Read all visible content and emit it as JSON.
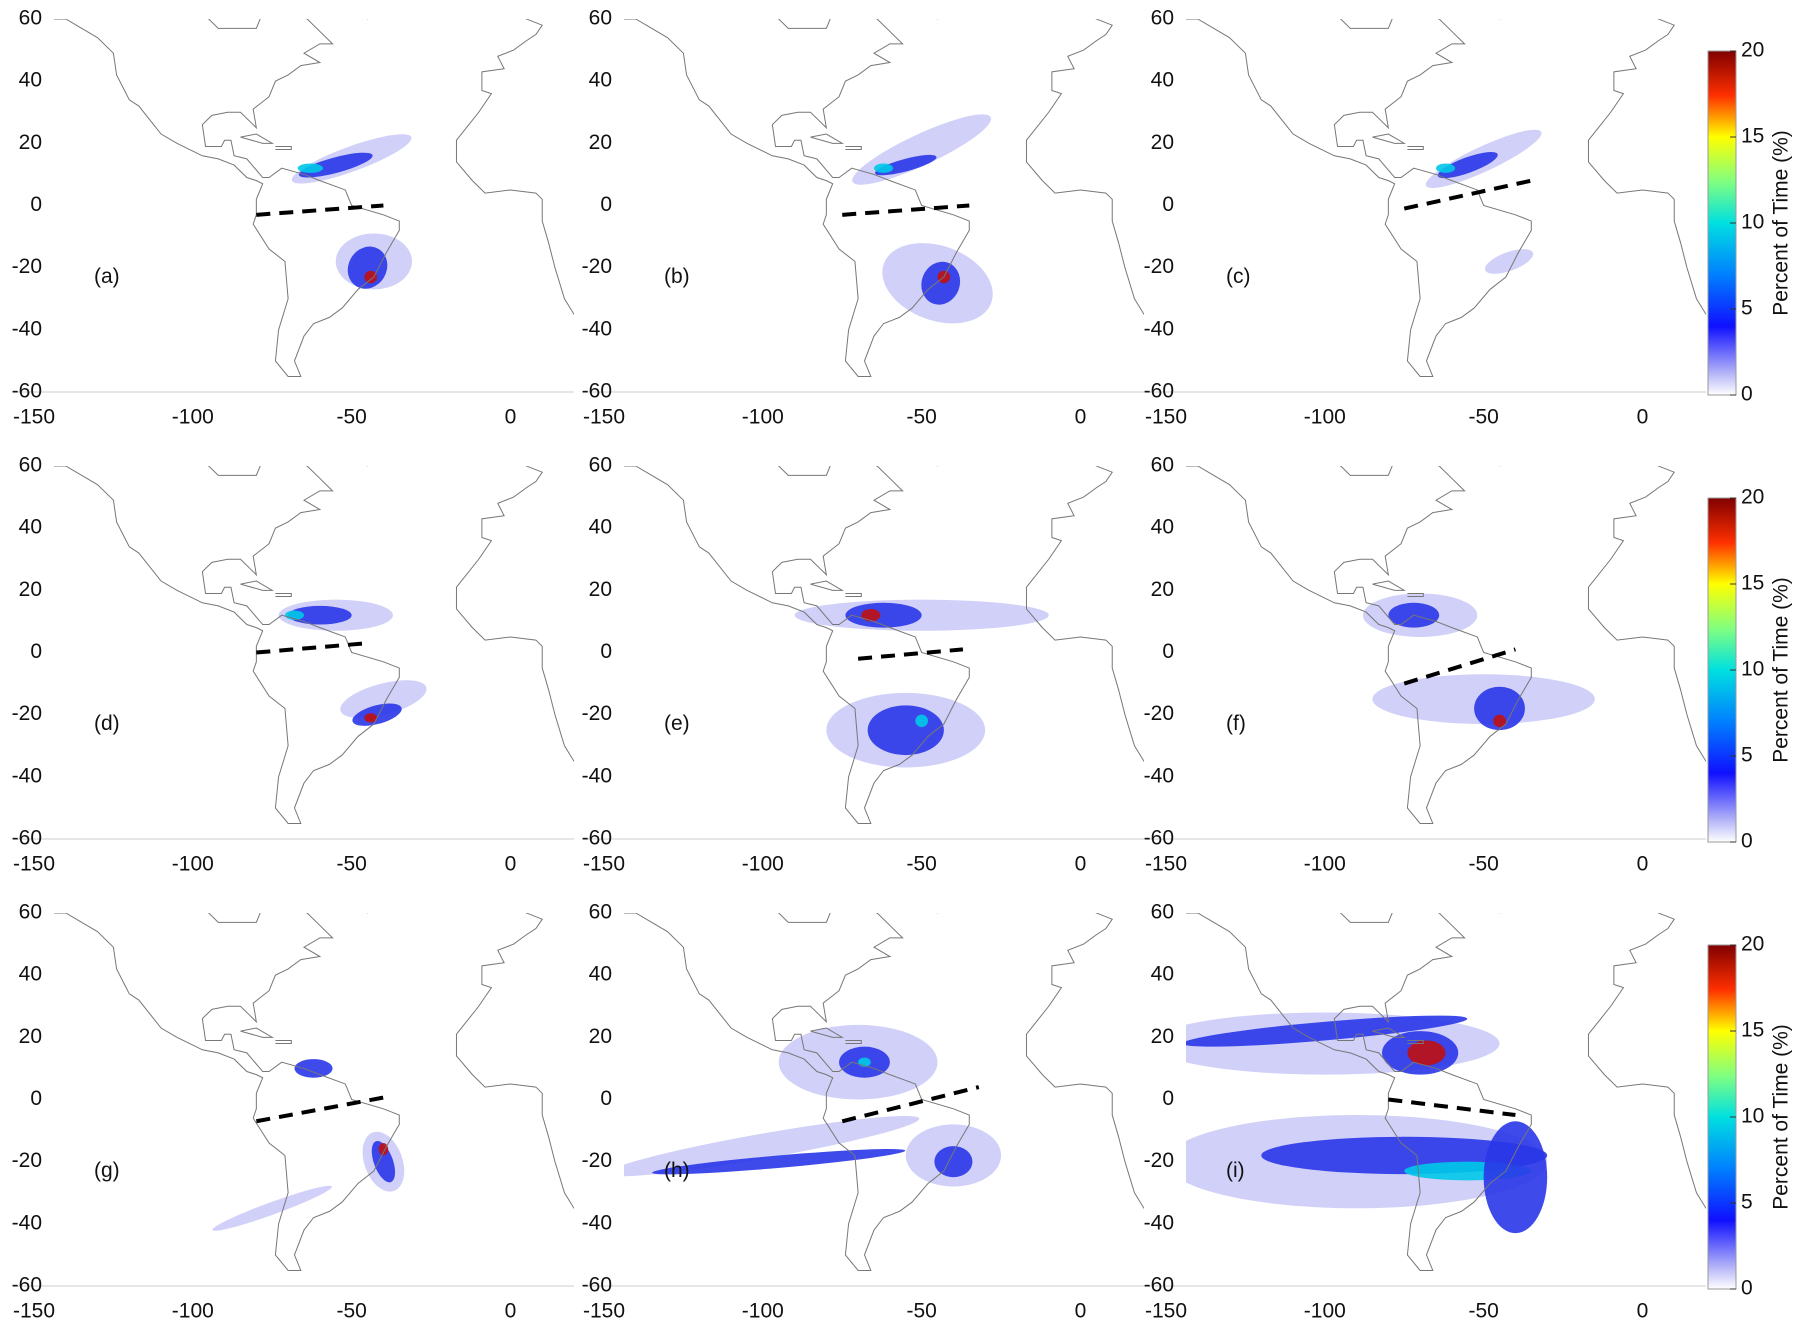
{
  "chart_data": [
    {
      "type": "heatmap",
      "label": "(a)",
      "xlim": [
        -150,
        20
      ],
      "ylim": [
        -60,
        60
      ],
      "xticks": [
        -150,
        -100,
        -50,
        0
      ],
      "yticks": [
        -60,
        -40,
        -20,
        0,
        20,
        40,
        60
      ]
    },
    {
      "type": "heatmap",
      "label": "(b)",
      "xlim": [
        -150,
        20
      ],
      "ylim": [
        -60,
        60
      ],
      "xticks": [
        -150,
        -100,
        -50,
        0
      ],
      "yticks": [
        -60,
        -40,
        -20,
        0,
        20,
        40,
        60
      ]
    },
    {
      "type": "heatmap",
      "label": "(c)",
      "xlim": [
        -150,
        20
      ],
      "ylim": [
        -60,
        60
      ],
      "xticks": [
        -150,
        -100,
        -50,
        0
      ],
      "yticks": [
        -60,
        -40,
        -20,
        0,
        20,
        40,
        60
      ],
      "colorbar": {
        "label": "Percent of Time (%)",
        "lim": [
          0,
          20
        ],
        "ticks": [
          0,
          5,
          10,
          15,
          20
        ]
      }
    },
    {
      "type": "heatmap",
      "label": "(d)",
      "xlim": [
        -150,
        20
      ],
      "ylim": [
        -60,
        60
      ],
      "xticks": [
        -150,
        -100,
        -50,
        0
      ],
      "yticks": [
        -60,
        -40,
        -20,
        0,
        20,
        40,
        60
      ]
    },
    {
      "type": "heatmap",
      "label": "(e)",
      "xlim": [
        -150,
        20
      ],
      "ylim": [
        -60,
        60
      ],
      "xticks": [
        -150,
        -100,
        -50,
        0
      ],
      "yticks": [
        -60,
        -40,
        -20,
        0,
        20,
        40,
        60
      ]
    },
    {
      "type": "heatmap",
      "label": "(f)",
      "xlim": [
        -150,
        20
      ],
      "ylim": [
        -60,
        60
      ],
      "xticks": [
        -150,
        -100,
        -50,
        0
      ],
      "yticks": [
        -60,
        -40,
        -20,
        0,
        20,
        40,
        60
      ],
      "colorbar": {
        "label": "Percent of Time (%)",
        "lim": [
          0,
          20
        ],
        "ticks": [
          0,
          5,
          10,
          15,
          20
        ]
      }
    },
    {
      "type": "heatmap",
      "label": "(g)",
      "xlim": [
        -150,
        20
      ],
      "ylim": [
        -60,
        60
      ],
      "xticks": [
        -150,
        -100,
        -50,
        0
      ],
      "yticks": [
        -60,
        -40,
        -20,
        0,
        20,
        40,
        60
      ]
    },
    {
      "type": "heatmap",
      "label": "(h)",
      "xlim": [
        -150,
        20
      ],
      "ylim": [
        -60,
        60
      ],
      "xticks": [
        -150,
        -100,
        -50,
        0
      ],
      "yticks": [
        -60,
        -40,
        -20,
        0,
        20,
        40,
        60
      ]
    },
    {
      "type": "heatmap",
      "label": "(i)",
      "xlim": [
        -150,
        20
      ],
      "ylim": [
        -60,
        60
      ],
      "xticks": [
        -150,
        -100,
        -50,
        0
      ],
      "yticks": [
        -60,
        -40,
        -20,
        0,
        20,
        40,
        60
      ],
      "colorbar": {
        "label": "Percent of Time (%)",
        "lim": [
          0,
          20
        ],
        "ticks": [
          0,
          5,
          10,
          15,
          20
        ]
      }
    }
  ]
}
